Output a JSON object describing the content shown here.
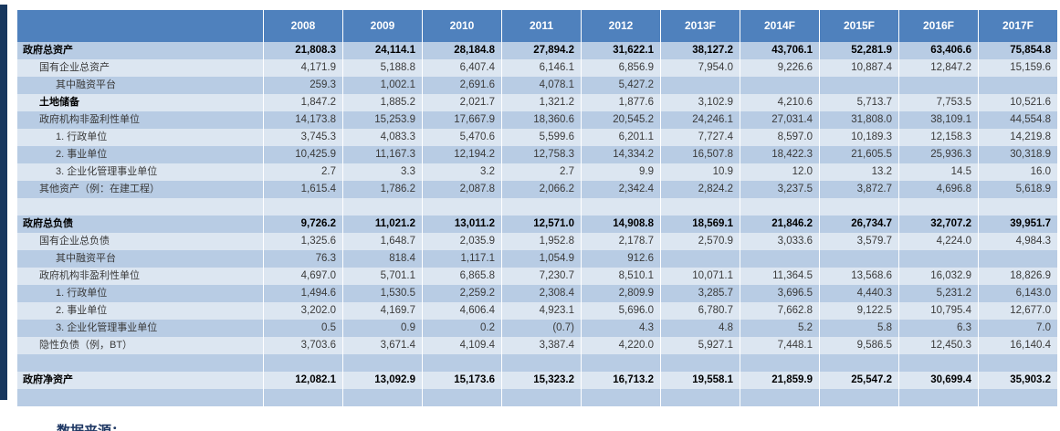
{
  "colors": {
    "header_bg": "#4f81bd",
    "header_text": "#ffffff",
    "band_dark": "#b8cce4",
    "band_light": "#dce6f1",
    "accent_bar": "#17375e",
    "body_text": "#3a3a3a",
    "source_text": "#1f3864"
  },
  "table": {
    "years": [
      "2008",
      "2009",
      "2010",
      "2011",
      "2012",
      "2013F",
      "2014F",
      "2015F",
      "2016F",
      "2017F"
    ],
    "rows": [
      {
        "label": "政府总资产",
        "indent": 0,
        "label_bold": true,
        "values_bold": true,
        "values": [
          "21,808.3",
          "24,114.1",
          "28,184.8",
          "27,894.2",
          "31,622.1",
          "38,127.2",
          "43,706.1",
          "52,281.9",
          "63,406.6",
          "75,854.8"
        ]
      },
      {
        "label": "国有企业总资产",
        "indent": 1,
        "label_bold": false,
        "values_bold": false,
        "values": [
          "4,171.9",
          "5,188.8",
          "6,407.4",
          "6,146.1",
          "6,856.9",
          "7,954.0",
          "9,226.6",
          "10,887.4",
          "12,847.2",
          "15,159.6"
        ]
      },
      {
        "label": "其中融资平台",
        "indent": 2,
        "label_bold": false,
        "values_bold": false,
        "values": [
          "259.3",
          "1,002.1",
          "2,691.6",
          "4,078.1",
          "5,427.2",
          "",
          "",
          "",
          "",
          ""
        ]
      },
      {
        "label": "土地储备",
        "indent": 1,
        "label_bold": true,
        "values_bold": false,
        "values": [
          "1,847.2",
          "1,885.2",
          "2,021.7",
          "1,321.2",
          "1,877.6",
          "3,102.9",
          "4,210.6",
          "5,713.7",
          "7,753.5",
          "10,521.6"
        ]
      },
      {
        "label": "政府机构非盈利性单位",
        "indent": 1,
        "label_bold": false,
        "values_bold": false,
        "values": [
          "14,173.8",
          "15,253.9",
          "17,667.9",
          "18,360.6",
          "20,545.2",
          "24,246.1",
          "27,031.4",
          "31,808.0",
          "38,109.1",
          "44,554.8"
        ]
      },
      {
        "label": "1. 行政单位",
        "indent": 2,
        "label_bold": false,
        "values_bold": false,
        "values": [
          "3,745.3",
          "4,083.3",
          "5,470.6",
          "5,599.6",
          "6,201.1",
          "7,727.4",
          "8,597.0",
          "10,189.3",
          "12,158.3",
          "14,219.8"
        ]
      },
      {
        "label": "2. 事业单位",
        "indent": 2,
        "label_bold": false,
        "values_bold": false,
        "values": [
          "10,425.9",
          "11,167.3",
          "12,194.2",
          "12,758.3",
          "14,334.2",
          "16,507.8",
          "18,422.3",
          "21,605.5",
          "25,936.3",
          "30,318.9"
        ]
      },
      {
        "label": "3. 企业化管理事业单位",
        "indent": 2,
        "label_bold": false,
        "values_bold": false,
        "values": [
          "2.7",
          "3.3",
          "3.2",
          "2.7",
          "9.9",
          "10.9",
          "12.0",
          "13.2",
          "14.5",
          "16.0"
        ]
      },
      {
        "label": "其他资产（例：在建工程）",
        "indent": 1,
        "label_bold": false,
        "values_bold": false,
        "values": [
          "1,615.4",
          "1,786.2",
          "2,087.8",
          "2,066.2",
          "2,342.4",
          "2,824.2",
          "3,237.5",
          "3,872.7",
          "4,696.8",
          "5,618.9"
        ]
      },
      {
        "label": "",
        "indent": 0,
        "label_bold": false,
        "values_bold": false,
        "values": [
          "",
          "",
          "",
          "",
          "",
          "",
          "",
          "",
          "",
          ""
        ]
      },
      {
        "label": "政府总负债",
        "indent": 0,
        "label_bold": true,
        "values_bold": true,
        "values": [
          "9,726.2",
          "11,021.2",
          "13,011.2",
          "12,571.0",
          "14,908.8",
          "18,569.1",
          "21,846.2",
          "26,734.7",
          "32,707.2",
          "39,951.7"
        ]
      },
      {
        "label": "国有企业总负债",
        "indent": 1,
        "label_bold": false,
        "values_bold": false,
        "values": [
          "1,325.6",
          "1,648.7",
          "2,035.9",
          "1,952.8",
          "2,178.7",
          "2,570.9",
          "3,033.6",
          "3,579.7",
          "4,224.0",
          "4,984.3"
        ]
      },
      {
        "label": "其中融资平台",
        "indent": 2,
        "label_bold": false,
        "values_bold": false,
        "values": [
          "76.3",
          "818.4",
          "1,117.1",
          "1,054.9",
          "912.6",
          "",
          "",
          "",
          "",
          ""
        ]
      },
      {
        "label": "政府机构非盈利性单位",
        "indent": 1,
        "label_bold": false,
        "values_bold": false,
        "values": [
          "4,697.0",
          "5,701.1",
          "6,865.8",
          "7,230.7",
          "8,510.1",
          "10,071.1",
          "11,364.5",
          "13,568.6",
          "16,032.9",
          "18,826.9"
        ]
      },
      {
        "label": "1. 行政单位",
        "indent": 2,
        "label_bold": false,
        "values_bold": false,
        "values": [
          "1,494.6",
          "1,530.5",
          "2,259.2",
          "2,308.4",
          "2,809.9",
          "3,285.7",
          "3,696.5",
          "4,440.3",
          "5,231.2",
          "6,143.0"
        ]
      },
      {
        "label": "2. 事业单位",
        "indent": 2,
        "label_bold": false,
        "values_bold": false,
        "values": [
          "3,202.0",
          "4,169.7",
          "4,606.4",
          "4,923.1",
          "5,696.0",
          "6,780.7",
          "7,662.8",
          "9,122.5",
          "10,795.4",
          "12,677.0"
        ]
      },
      {
        "label": "3. 企业化管理事业单位",
        "indent": 2,
        "label_bold": false,
        "values_bold": false,
        "values": [
          "0.5",
          "0.9",
          "0.2",
          "(0.7)",
          "4.3",
          "4.8",
          "5.2",
          "5.8",
          "6.3",
          "7.0"
        ]
      },
      {
        "label": "隐性负债（例，BT）",
        "indent": 1,
        "label_bold": false,
        "values_bold": false,
        "values": [
          "3,703.6",
          "3,671.4",
          "4,109.4",
          "3,387.4",
          "4,220.0",
          "5,927.1",
          "7,448.1",
          "9,586.5",
          "12,450.3",
          "16,140.4"
        ]
      },
      {
        "label": "",
        "indent": 0,
        "label_bold": false,
        "values_bold": false,
        "values": [
          "",
          "",
          "",
          "",
          "",
          "",
          "",
          "",
          "",
          ""
        ]
      },
      {
        "label": "政府净资产",
        "indent": 0,
        "label_bold": true,
        "values_bold": true,
        "values": [
          "12,082.1",
          "13,092.9",
          "15,173.6",
          "15,323.2",
          "16,713.2",
          "19,558.1",
          "21,859.9",
          "25,547.2",
          "30,699.4",
          "35,903.2"
        ]
      },
      {
        "label": "",
        "indent": 0,
        "label_bold": false,
        "values_bold": false,
        "values": [
          "",
          "",
          "",
          "",
          "",
          "",
          "",
          "",
          "",
          ""
        ]
      }
    ]
  },
  "footer": {
    "source_label": "数据来源："
  }
}
